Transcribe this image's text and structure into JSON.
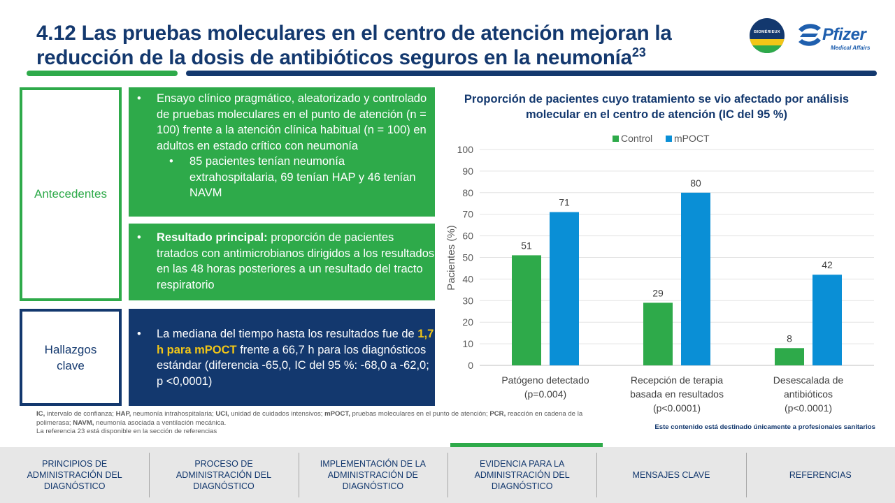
{
  "title": {
    "text": "4.12 Las pruebas moleculares en el centro de atención mejoran la reducción de la dosis de antibióticos seguros en la neumonía",
    "sup": "23"
  },
  "logos": {
    "biomerieux": "BIOMÉRIEUX",
    "pfizer": "Pfizer",
    "pfizer_sub": "Medical Affairs"
  },
  "sections": {
    "antecedentes": "Antecedentes",
    "hallazgos": "Hallazgos clave"
  },
  "panel1": {
    "bullet": "Ensayo clínico pragmático, aleatorizado y controlado de pruebas moleculares en el punto de atención (n = 100) frente a la atención clínica habitual (n = 100) en adultos en estado crítico con neumonía",
    "sub_bullet": "85 pacientes tenían neumonía extrahospitalaria, 69 tenían HAP y 46 tenían NAVM"
  },
  "panel2": {
    "bold": "Resultado principal:",
    "text": " proporción de pacientes tratados con antimicrobianos dirigidos a los resultados en las 48 horas posteriores a un resultado del tracto respiratorio"
  },
  "panel3": {
    "pre": "La mediana del tiempo hasta los resultados fue de ",
    "highlight": "1,7 h para mPOCT",
    "post": " frente a 66,7 h para los diagnósticos estándar (diferencia -65,0, IC del 95 %: -68,0 a -62,0; p <0,0001)"
  },
  "chart_data": {
    "type": "bar",
    "title": "Proporción de pacientes cuyo tratamiento se vio afectado por análisis molecular en el centro de atención (IC del 95 %)",
    "ylabel": "Pacientes (%)",
    "xlabel": "",
    "ylim": [
      0,
      100
    ],
    "yticks": [
      0,
      10,
      20,
      30,
      40,
      50,
      60,
      70,
      80,
      90,
      100
    ],
    "grid": true,
    "legend_position": "top",
    "categories": [
      [
        "Patógeno detectado",
        "(p=0.004)"
      ],
      [
        "Recepción de terapia",
        "basada en resultados",
        "(p<0.0001)"
      ],
      [
        "Desescalada de",
        "antibióticos",
        "(p<0.0001)"
      ]
    ],
    "series": [
      {
        "name": "Control",
        "values": [
          51,
          29,
          8
        ],
        "color": "#2eaa4a"
      },
      {
        "name": "mPOCT",
        "values": [
          71,
          80,
          42
        ],
        "color": "#0a8fd6"
      }
    ]
  },
  "footnote": [
    {
      "b": "IC,",
      "t": " intervalo de confianza; "
    },
    {
      "b": "HAP,",
      "t": " neumonía intrahospitalaria; "
    },
    {
      "b": "UCI,",
      "t": " unidad de cuidados intensivos; "
    },
    {
      "b": "mPOCT,",
      "t": " pruebas moleculares en el punto de atención; "
    },
    {
      "b": "PCR,",
      "t": " reacción en cadena de la polimerasa; "
    },
    {
      "b": "NAVM,",
      "t": " neumonía asociada a ventilación mecánica."
    }
  ],
  "footnote_ref": "La referencia 23 está disponible en la sección de referencias",
  "professional_note": "Este contenido está destinado únicamente a profesionales sanitarios",
  "nav": {
    "items": [
      "PRINCIPIOS DE ADMINISTRACIÓN DEL DIAGNÓSTICO",
      "PROCESO DE ADMINISTRACIÓN DEL DIAGNÓSTICO",
      "IMPLEMENTACIÓN DE LA ADMINISTRACIÓN DE DIAGNÓSTICO",
      "EVIDENCIA PARA LA ADMINISTRACIÓN DEL DIAGNÓSTICO",
      "MENSAJES CLAVE",
      "REFERENCIAS"
    ],
    "active_index": 3
  }
}
